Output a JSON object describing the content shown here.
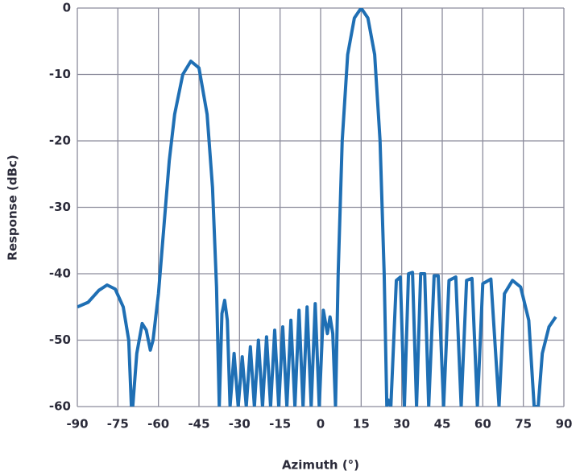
{
  "chart_data": {
    "type": "line",
    "x_label": "Azimuth (°)",
    "y_label": "Response (dBc)",
    "color": "#1f6fb4",
    "grid": true,
    "xlim": [
      -90,
      90
    ],
    "ylim": [
      -60,
      0
    ],
    "xticks": [
      -90,
      -75,
      -60,
      -45,
      -30,
      -15,
      0,
      15,
      30,
      45,
      60,
      75,
      90
    ],
    "yticks": [
      -60,
      -50,
      -40,
      -30,
      -20,
      -10,
      0
    ],
    "x": [
      -90,
      -86,
      -82,
      -79,
      -76,
      -73,
      -71,
      -70,
      -69.5,
      -68,
      -66,
      -64.5,
      -63,
      -62,
      -60,
      -58,
      -56,
      -54,
      -51,
      -48,
      -45,
      -42,
      -40,
      -38.5,
      -37.5,
      -36.5,
      -35.5,
      -34.5,
      -33.5,
      -32,
      -30.5,
      -29,
      -27.5,
      -26,
      -24.5,
      -23,
      -21.5,
      -20,
      -18.5,
      -17,
      -15.5,
      -14,
      -12.5,
      -11,
      -9.5,
      -8,
      -6.5,
      -5,
      -3.5,
      -2,
      -0.5,
      1,
      2.5,
      3.5,
      4.5,
      5.5,
      6.5,
      8,
      10,
      12.5,
      15,
      17.5,
      20,
      22,
      23.5,
      24.5,
      25,
      26,
      28,
      29.5,
      31,
      32.5,
      34,
      35.5,
      37,
      38.5,
      40,
      42,
      43.5,
      45.5,
      47.5,
      50,
      52,
      54,
      56,
      58,
      60,
      63,
      66,
      68,
      71,
      74,
      77,
      79,
      80.5,
      82,
      84.5,
      87
    ],
    "values": [
      -45,
      -44.3,
      -42.5,
      -41.7,
      -42.3,
      -45,
      -50,
      -60,
      -60,
      -52,
      -47.5,
      -48.5,
      -51.5,
      -50,
      -43,
      -33,
      -23,
      -16,
      -10,
      -8,
      -9,
      -16,
      -27,
      -42,
      -60,
      -46,
      -44,
      -47,
      -60,
      -52,
      -60,
      -52.5,
      -60,
      -51,
      -60,
      -50,
      -60,
      -49.5,
      -60,
      -48.5,
      -60,
      -48,
      -60,
      -47,
      -60,
      -45.5,
      -60,
      -45,
      -60,
      -44.5,
      -60,
      -45.5,
      -49,
      -46.5,
      -49,
      -60,
      -40,
      -20,
      -7,
      -1.5,
      0,
      -1.5,
      -7,
      -20,
      -40,
      -60,
      -59,
      -60,
      -41,
      -40.5,
      -60,
      -40,
      -39.8,
      -60,
      -40,
      -40,
      -60,
      -40.3,
      -40.3,
      -60,
      -41,
      -40.5,
      -60,
      -41,
      -40.7,
      -60,
      -41.5,
      -40.8,
      -60,
      -43,
      -41,
      -42,
      -47,
      -60,
      -60,
      -52,
      -48,
      -46.5
    ]
  }
}
